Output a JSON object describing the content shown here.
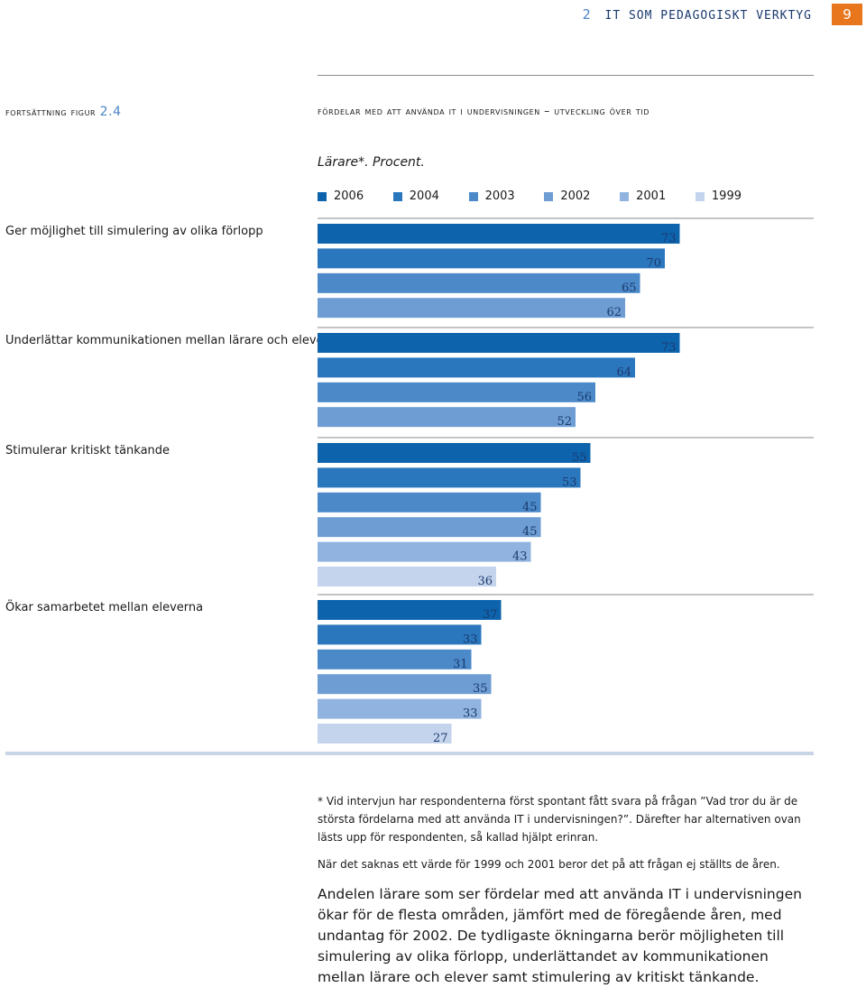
{
  "header": {
    "chapter_number": "2",
    "chapter_title": "IT SOM PEDAGOGISKT VERKTYG",
    "page_number": "9"
  },
  "figure": {
    "label_prefix": "fortsättning figur",
    "label_number": "2.4",
    "title": "fördelar med att använda it i undervisningen – utveckling över tid",
    "subtitle": "Lärare*. Procent."
  },
  "colors": {
    "2006": "#0d64ad",
    "2004": "#2b77be",
    "2003": "#4b89c9",
    "2002": "#6d9dd3",
    "2001": "#91b3df",
    "1999": "#c4d4ec",
    "rule": "#8a8a8a",
    "axis": "#c9d5e6",
    "accent": "#e8761c",
    "chapter": "#4a86c6"
  },
  "chart_data": {
    "type": "bar",
    "orientation": "horizontal",
    "title": "Fördelar med att använda IT i undervisningen – utveckling över tid",
    "unit": "Procent",
    "xlim": [
      0,
      100
    ],
    "legend": [
      "2006",
      "2004",
      "2003",
      "2002",
      "2001",
      "1999"
    ],
    "categories": [
      {
        "label": "Ger möjlighet till simulering av olika förlopp",
        "bars": [
          {
            "year": "2006",
            "value": 73
          },
          {
            "year": "2004",
            "value": 70
          },
          {
            "year": "2003",
            "value": 65
          },
          {
            "year": "2002",
            "value": 62
          }
        ]
      },
      {
        "label": "Underlättar kommunikationen mellan lärare och elever",
        "bars": [
          {
            "year": "2006",
            "value": 73
          },
          {
            "year": "2004",
            "value": 64
          },
          {
            "year": "2003",
            "value": 56
          },
          {
            "year": "2002",
            "value": 52
          }
        ]
      },
      {
        "label": "Stimulerar kritiskt tänkande",
        "bars": [
          {
            "year": "2006",
            "value": 55
          },
          {
            "year": "2004",
            "value": 53
          },
          {
            "year": "2003",
            "value": 45
          },
          {
            "year": "2002",
            "value": 45
          },
          {
            "year": "2001",
            "value": 43
          },
          {
            "year": "1999",
            "value": 36
          }
        ]
      },
      {
        "label": "Ökar samarbetet mellan eleverna",
        "bars": [
          {
            "year": "2006",
            "value": 37
          },
          {
            "year": "2004",
            "value": 33
          },
          {
            "year": "2003",
            "value": 31
          },
          {
            "year": "2002",
            "value": 35
          },
          {
            "year": "2001",
            "value": 33
          },
          {
            "year": "1999",
            "value": 27
          }
        ]
      }
    ]
  },
  "footnotes": {
    "note1": "* Vid intervjun har respondenterna först spontant fått svara på frågan ”Vad tror du är de största fördelarna med att använda IT i undervisningen?”. Därefter har alternativen ovan lästs upp för respondenten, så kallad hjälpt erinran.",
    "note2": "När det saknas ett värde för 1999 och 2001 beror det på att frågan ej ställts de åren."
  },
  "body_text": "Andelen lärare som ser fördelar med att använda IT i undervisningen ökar för de flesta områden, jämfört med de föregående åren, med undantag för 2002. De tydligaste ökningarna berör möjligheten till simulering av olika förlopp, underlättandet av kommunikationen mellan lärare och elever samt stimulering av kritiskt tänkande."
}
